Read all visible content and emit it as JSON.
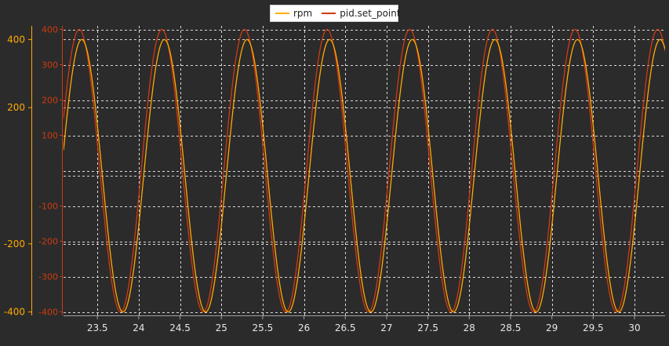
{
  "chart_data": {
    "type": "line",
    "legend": {
      "placement": "top-center"
    },
    "grid": true,
    "x": {
      "lim": [
        23.09,
        30.37
      ],
      "ticks": [
        23.5,
        24,
        24.5,
        25,
        25.5,
        26,
        26.5,
        27,
        27.5,
        28,
        28.5,
        29,
        29.5,
        30
      ]
    },
    "series": [
      {
        "name": "rpm",
        "color": "#ffaa00",
        "axis": "left",
        "period": 1.0,
        "amplitude": 400,
        "phase_zero_up": 23.06,
        "ylim": [
          -410,
          440
        ],
        "yticks": [
          -400,
          -200,
          200,
          400
        ]
      },
      {
        "name": "pid.set_point",
        "color": "#d03a10",
        "axis": "right",
        "period": 1.0,
        "amplitude": 400,
        "phase_zero_up": 23.03,
        "ylim": [
          -410,
          410
        ],
        "yticks": [
          -400,
          -300,
          -200,
          -100,
          100,
          200,
          300,
          400
        ]
      }
    ]
  }
}
